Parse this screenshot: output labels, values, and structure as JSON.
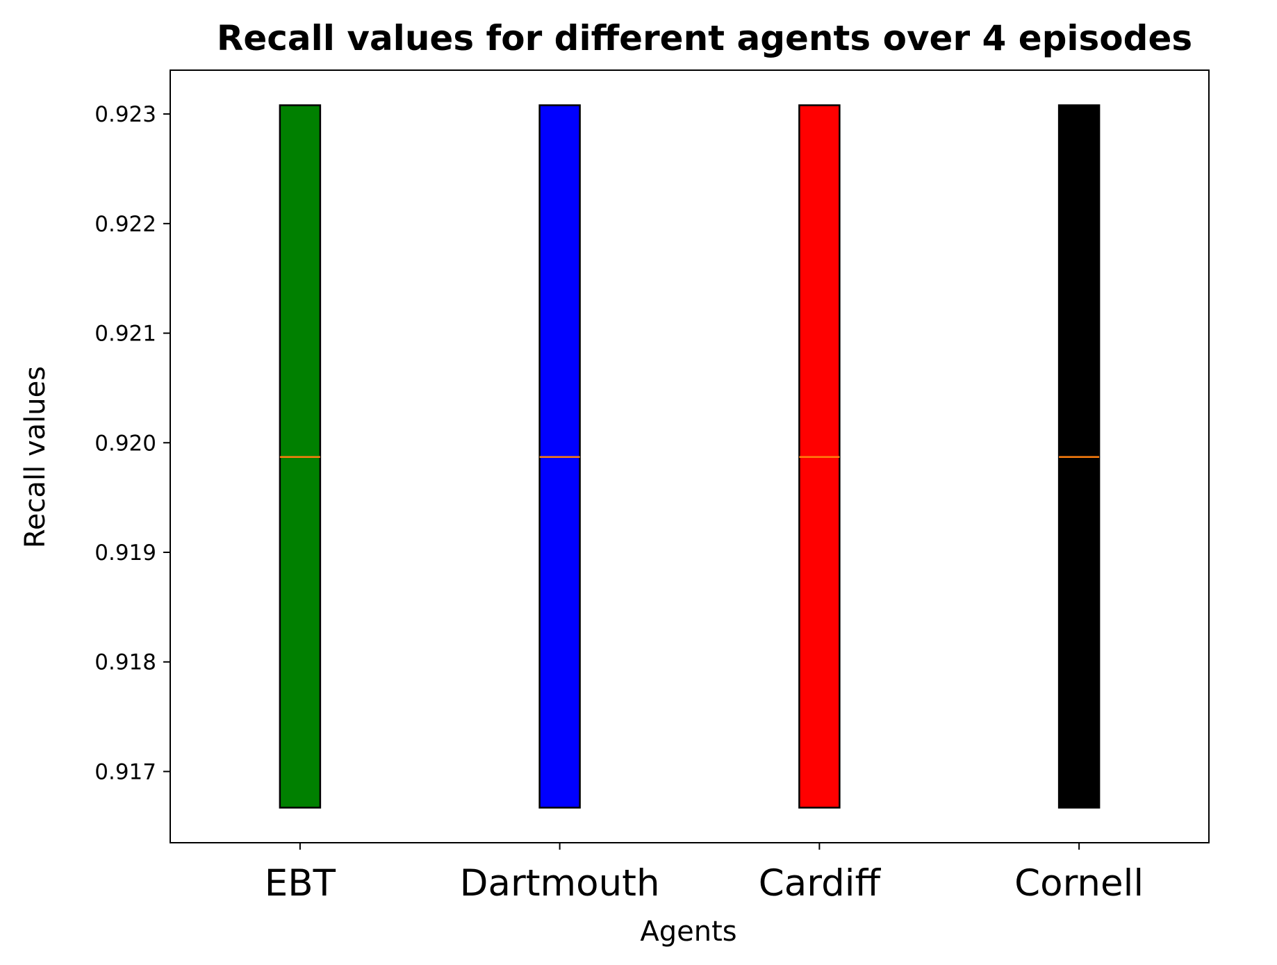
{
  "chart_data": {
    "type": "boxplot",
    "title": "Recall values for different agents over 4 episodes",
    "xlabel": "Agents",
    "ylabel": "Recall values",
    "categories": [
      "EBT",
      "Dartmouth",
      "Cardiff",
      "Cornell"
    ],
    "colors": [
      "#008000",
      "#0000ff",
      "#ff0000",
      "#000000"
    ],
    "median_color": "#ff7f0e",
    "boxes": [
      {
        "q1": 0.91667,
        "median": 0.91987,
        "q3": 0.92308
      },
      {
        "q1": 0.91667,
        "median": 0.91987,
        "q3": 0.92308
      },
      {
        "q1": 0.91667,
        "median": 0.91987,
        "q3": 0.92308
      },
      {
        "q1": 0.91667,
        "median": 0.91987,
        "q3": 0.92308
      }
    ],
    "yticks": [
      0.917,
      0.918,
      0.919,
      0.92,
      0.921,
      0.922,
      0.923
    ],
    "ytick_labels": [
      "0.917",
      "0.918",
      "0.919",
      "0.920",
      "0.921",
      "0.922",
      "0.923"
    ],
    "ylim": [
      0.91635,
      0.9234
    ],
    "grid": false,
    "legend": "none"
  }
}
